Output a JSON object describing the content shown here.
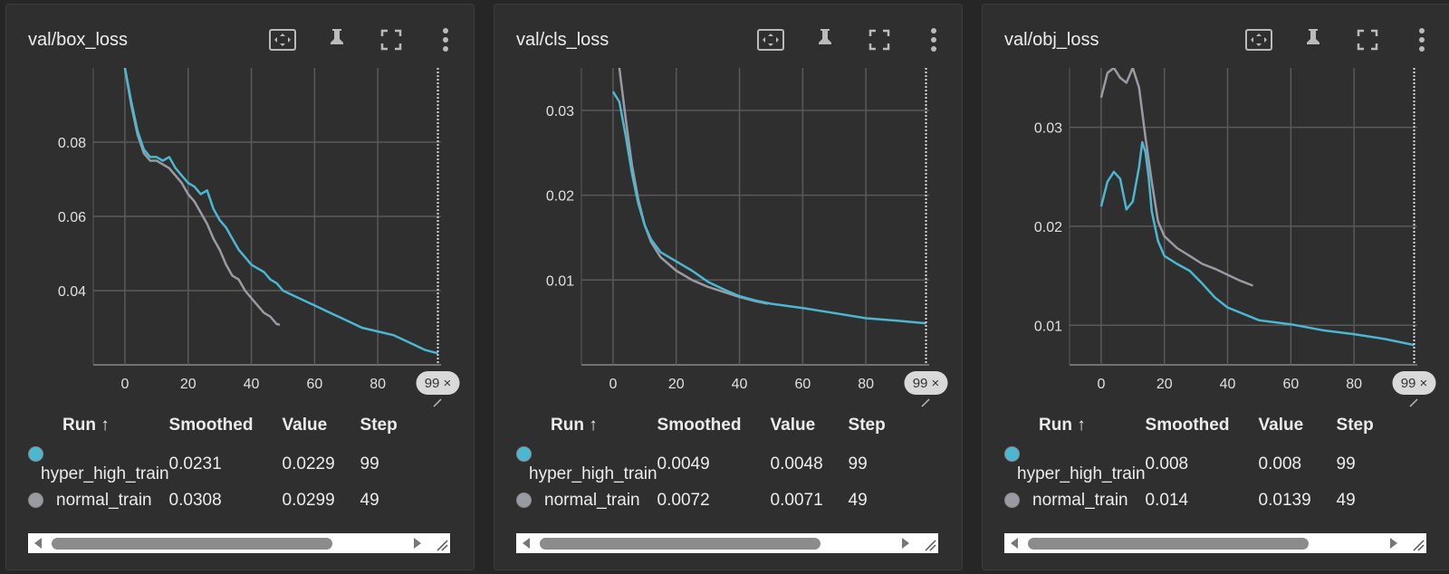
{
  "colors": {
    "series_a": "#4bb7d1",
    "series_b": "#9a9aa3",
    "grid": "#5a5a5a"
  },
  "icons": [
    "fit-domain-icon",
    "pin-icon",
    "fullscreen-icon",
    "more-vert-icon"
  ],
  "table_headers": {
    "run": "Run ↑",
    "smoothed": "Smoothed",
    "value": "Value",
    "step": "Step"
  },
  "cards": [
    {
      "title": "val/box_loss",
      "badge": "99 ×",
      "rows": [
        {
          "run": "hyper_high_train",
          "smoothed": "0.0231",
          "value": "0.0229",
          "step": "99"
        },
        {
          "run": "normal_train",
          "smoothed": "0.0308",
          "value": "0.0299",
          "step": "49"
        }
      ]
    },
    {
      "title": "val/cls_loss",
      "badge": "99 ×",
      "rows": [
        {
          "run": "hyper_high_train",
          "smoothed": "0.0049",
          "value": "0.0048",
          "step": "99"
        },
        {
          "run": "normal_train",
          "smoothed": "0.0072",
          "value": "0.0071",
          "step": "49"
        }
      ]
    },
    {
      "title": "val/obj_loss",
      "badge": "99 ×",
      "rows": [
        {
          "run": "hyper_high_train",
          "smoothed": "0.008",
          "value": "0.008",
          "step": "99"
        },
        {
          "run": "normal_train",
          "smoothed": "0.014",
          "value": "0.0139",
          "step": "49"
        }
      ]
    }
  ],
  "chart_data": [
    {
      "type": "line",
      "title": "val/box_loss",
      "xlim": [
        -10,
        100
      ],
      "ylim": [
        0.02,
        0.1
      ],
      "xticks": [
        0,
        20,
        40,
        60,
        80
      ],
      "yticks": [
        0.04,
        0.06,
        0.08
      ],
      "ytick_labels": [
        "0.04",
        "0.06",
        "0.08"
      ],
      "series": [
        {
          "name": "hyper_high_train",
          "x": [
            0,
            2,
            4,
            6,
            8,
            10,
            12,
            14,
            16,
            18,
            20,
            22,
            24,
            26,
            28,
            30,
            32,
            34,
            36,
            38,
            40,
            42,
            44,
            46,
            48,
            50,
            55,
            60,
            65,
            70,
            75,
            80,
            85,
            90,
            95,
            99
          ],
          "y": [
            0.1,
            0.091,
            0.083,
            0.078,
            0.076,
            0.076,
            0.075,
            0.076,
            0.073,
            0.071,
            0.069,
            0.068,
            0.066,
            0.067,
            0.062,
            0.059,
            0.057,
            0.054,
            0.051,
            0.049,
            0.047,
            0.046,
            0.045,
            0.043,
            0.042,
            0.04,
            0.038,
            0.036,
            0.034,
            0.032,
            0.03,
            0.029,
            0.028,
            0.026,
            0.024,
            0.0231
          ]
        },
        {
          "name": "normal_train",
          "x": [
            0,
            2,
            4,
            6,
            8,
            10,
            12,
            14,
            16,
            18,
            20,
            22,
            24,
            26,
            28,
            30,
            32,
            34,
            36,
            38,
            40,
            42,
            44,
            46,
            48,
            49
          ],
          "y": [
            0.1,
            0.09,
            0.082,
            0.077,
            0.075,
            0.075,
            0.074,
            0.073,
            0.071,
            0.069,
            0.066,
            0.064,
            0.061,
            0.058,
            0.054,
            0.051,
            0.047,
            0.044,
            0.043,
            0.04,
            0.038,
            0.036,
            0.034,
            0.033,
            0.031,
            0.0308
          ]
        }
      ]
    },
    {
      "type": "line",
      "title": "val/cls_loss",
      "xlim": [
        -10,
        100
      ],
      "ylim": [
        0,
        0.035
      ],
      "xticks": [
        0,
        20,
        40,
        60,
        80
      ],
      "yticks": [
        0.01,
        0.02,
        0.03
      ],
      "ytick_labels": [
        "0.01",
        "0.02",
        "0.03"
      ],
      "series": [
        {
          "name": "hyper_high_train",
          "x": [
            0,
            2,
            4,
            6,
            8,
            10,
            12,
            15,
            20,
            25,
            30,
            35,
            40,
            45,
            50,
            60,
            70,
            80,
            90,
            99
          ],
          "y": [
            0.0322,
            0.031,
            0.027,
            0.0225,
            0.019,
            0.0165,
            0.0148,
            0.0133,
            0.0122,
            0.0111,
            0.0098,
            0.0089,
            0.0081,
            0.0076,
            0.0072,
            0.0067,
            0.0061,
            0.0055,
            0.0052,
            0.0049
          ]
        },
        {
          "name": "normal_train",
          "x": [
            2,
            4,
            6,
            8,
            10,
            12,
            15,
            20,
            25,
            30,
            35,
            40,
            45,
            49
          ],
          "y": [
            0.035,
            0.029,
            0.0235,
            0.0195,
            0.0165,
            0.0145,
            0.0127,
            0.0111,
            0.01,
            0.0092,
            0.0086,
            0.008,
            0.0075,
            0.0072
          ]
        }
      ]
    },
    {
      "type": "line",
      "title": "val/obj_loss",
      "xlim": [
        -10,
        100
      ],
      "ylim": [
        0.006,
        0.036
      ],
      "xticks": [
        0,
        20,
        40,
        60,
        80
      ],
      "yticks": [
        0.01,
        0.02,
        0.03
      ],
      "ytick_labels": [
        "0.01",
        "0.02",
        "0.03"
      ],
      "series": [
        {
          "name": "hyper_high_train",
          "x": [
            0,
            2,
            4,
            6,
            8,
            10,
            12,
            13,
            14,
            15,
            16,
            18,
            20,
            24,
            28,
            32,
            36,
            40,
            50,
            60,
            70,
            80,
            90,
            99
          ],
          "y": [
            0.022,
            0.0245,
            0.0255,
            0.0248,
            0.0217,
            0.0225,
            0.026,
            0.0285,
            0.0275,
            0.025,
            0.0215,
            0.0185,
            0.017,
            0.0162,
            0.0155,
            0.0142,
            0.0128,
            0.0118,
            0.0105,
            0.0101,
            0.0095,
            0.0091,
            0.0086,
            0.008
          ]
        },
        {
          "name": "normal_train",
          "x": [
            0,
            2,
            4,
            6,
            8,
            10,
            12,
            14,
            16,
            18,
            20,
            24,
            28,
            32,
            36,
            40,
            44,
            48
          ],
          "y": [
            0.033,
            0.0355,
            0.036,
            0.035,
            0.0345,
            0.036,
            0.034,
            0.029,
            0.0245,
            0.0205,
            0.019,
            0.0178,
            0.017,
            0.0162,
            0.0157,
            0.0151,
            0.0145,
            0.014
          ]
        }
      ]
    }
  ]
}
